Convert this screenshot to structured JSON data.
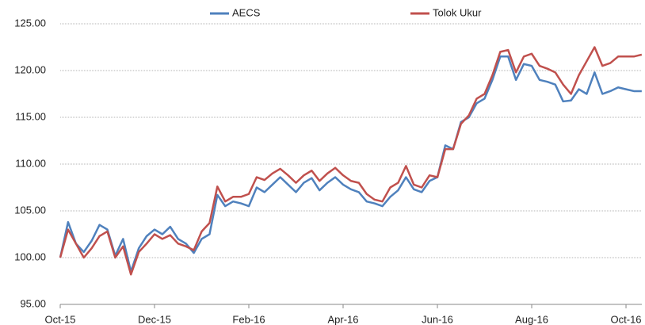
{
  "chart_data": {
    "type": "line",
    "categories": [
      "Oct-15",
      null,
      null,
      null,
      null,
      null,
      null,
      null,
      null,
      null,
      null,
      null,
      "Dec-15",
      null,
      null,
      null,
      null,
      null,
      null,
      null,
      null,
      null,
      null,
      null,
      "Feb-16",
      null,
      null,
      null,
      null,
      null,
      null,
      null,
      null,
      null,
      null,
      null,
      "Apr-16",
      null,
      null,
      null,
      null,
      null,
      null,
      null,
      null,
      null,
      null,
      null,
      "Jun-16",
      null,
      null,
      null,
      null,
      null,
      null,
      null,
      null,
      null,
      null,
      null,
      "Aug-16",
      null,
      null,
      null,
      null,
      null,
      null,
      null,
      null,
      null,
      null,
      null,
      "Oct-16",
      null,
      null
    ],
    "series": [
      {
        "name": "AECS",
        "color": "#4f81bd",
        "values": [
          100.0,
          103.8,
          101.5,
          100.6,
          101.8,
          103.5,
          103.0,
          100.2,
          102.0,
          98.5,
          101.0,
          102.3,
          103.0,
          102.5,
          103.3,
          102.0,
          101.5,
          100.5,
          102.0,
          102.5,
          106.7,
          105.5,
          106.0,
          105.8,
          105.5,
          107.5,
          107.0,
          107.8,
          108.6,
          107.8,
          107.0,
          108.0,
          108.5,
          107.2,
          108.0,
          108.6,
          107.8,
          107.3,
          107.0,
          106.0,
          105.8,
          105.5,
          106.5,
          107.2,
          108.6,
          107.3,
          107.0,
          108.2,
          108.6,
          112.0,
          111.6,
          114.5,
          115.0,
          116.5,
          117.0,
          119.0,
          121.5,
          121.5,
          119.0,
          120.7,
          120.5,
          119.0,
          118.8,
          118.5,
          116.7,
          116.8,
          118.0,
          117.5,
          119.8,
          117.5,
          117.8,
          118.2,
          118.0,
          117.8,
          117.8
        ]
      },
      {
        "name": "Tolok Ukur",
        "color": "#c0504d",
        "values": [
          100.0,
          103.0,
          101.5,
          100.0,
          101.0,
          102.3,
          102.8,
          100.0,
          101.2,
          98.2,
          100.6,
          101.5,
          102.5,
          102.0,
          102.4,
          101.5,
          101.2,
          100.8,
          102.8,
          103.7,
          107.6,
          106.0,
          106.5,
          106.5,
          106.8,
          108.6,
          108.3,
          109.0,
          109.5,
          108.8,
          108.0,
          108.8,
          109.3,
          108.2,
          109.0,
          109.6,
          108.8,
          108.2,
          108.0,
          106.8,
          106.2,
          106.0,
          107.5,
          108.0,
          109.8,
          107.8,
          107.5,
          108.8,
          108.6,
          111.6,
          111.6,
          114.3,
          115.2,
          117.0,
          117.5,
          119.5,
          122.0,
          122.2,
          119.8,
          121.5,
          121.8,
          120.5,
          120.2,
          119.8,
          118.5,
          117.5,
          119.5,
          121.0,
          122.5,
          120.5,
          120.8,
          121.5,
          121.5,
          121.5,
          121.7
        ]
      }
    ],
    "ylim": [
      95,
      125
    ],
    "yticks": [
      {
        "value": 95,
        "label": "95.00"
      },
      {
        "value": 100,
        "label": "100.00"
      },
      {
        "value": 105,
        "label": "105.00"
      },
      {
        "value": 110,
        "label": "110.00"
      },
      {
        "value": 115,
        "label": "115.00"
      },
      {
        "value": 120,
        "label": "120.00"
      },
      {
        "value": 125,
        "label": "125.00"
      }
    ],
    "grid": true,
    "legend": "top"
  }
}
